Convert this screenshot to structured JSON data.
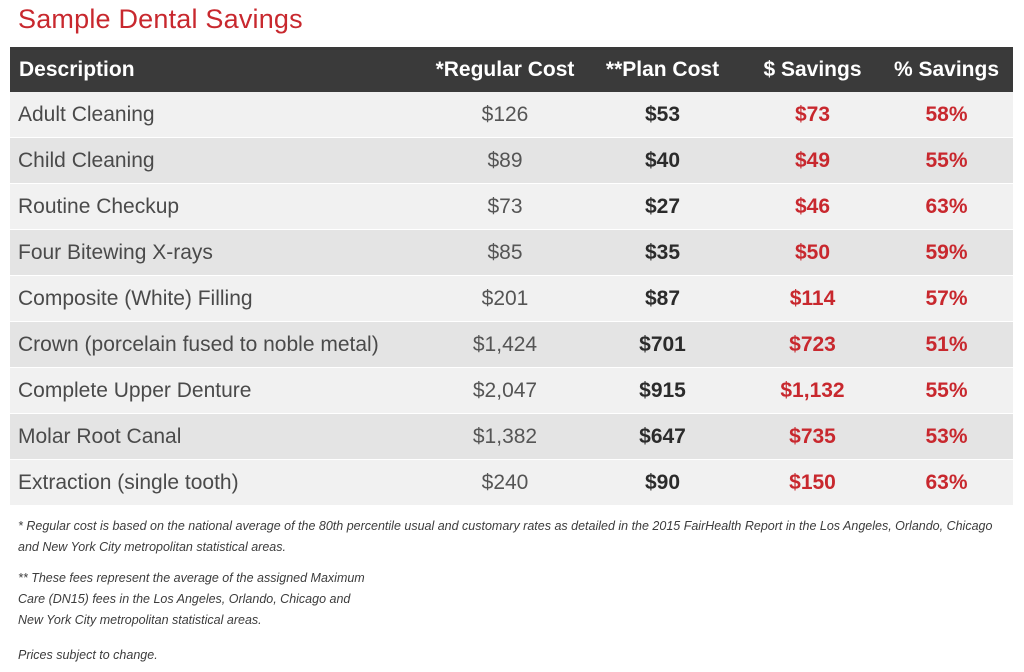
{
  "title": "Sample Dental Savings",
  "table": {
    "headers": {
      "description": "Description",
      "regular_cost": "*Regular Cost",
      "plan_cost": "**Plan Cost",
      "dollar_savings": "$ Savings",
      "percent_savings": "% Savings"
    },
    "rows": [
      {
        "description": "Adult Cleaning",
        "regular_cost": "$126",
        "plan_cost": "$53",
        "dollar_savings": "$73",
        "percent_savings": "58%"
      },
      {
        "description": "Child Cleaning",
        "regular_cost": "$89",
        "plan_cost": "$40",
        "dollar_savings": "$49",
        "percent_savings": "55%"
      },
      {
        "description": "Routine Checkup",
        "regular_cost": "$73",
        "plan_cost": "$27",
        "dollar_savings": "$46",
        "percent_savings": "63%"
      },
      {
        "description": "Four Bitewing X-rays",
        "regular_cost": "$85",
        "plan_cost": "$35",
        "dollar_savings": "$50",
        "percent_savings": "59%"
      },
      {
        "description": "Composite (White) Filling",
        "regular_cost": "$201",
        "plan_cost": "$87",
        "dollar_savings": "$114",
        "percent_savings": "57%"
      },
      {
        "description": "Crown (porcelain fused to noble metal)",
        "regular_cost": "$1,424",
        "plan_cost": "$701",
        "dollar_savings": "$723",
        "percent_savings": "51%"
      },
      {
        "description": "Complete Upper Denture",
        "regular_cost": "$2,047",
        "plan_cost": "$915",
        "dollar_savings": "$1,132",
        "percent_savings": "55%"
      },
      {
        "description": "Molar Root Canal",
        "regular_cost": "$1,382",
        "plan_cost": "$647",
        "dollar_savings": "$735",
        "percent_savings": "53%"
      },
      {
        "description": "Extraction (single tooth)",
        "regular_cost": "$240",
        "plan_cost": "$90",
        "dollar_savings": "$150",
        "percent_savings": "63%"
      }
    ]
  },
  "footnotes": {
    "regular_cost_note": "* Regular cost is based on the national average of the 80th percentile usual and customary rates as detailed in the 2015 FairHealth Report in the Los Angeles, Orlando, Chicago and New York City metropolitan statistical areas.",
    "plan_cost_note": "** These fees represent the average of the assigned Maximum Care (DN15) fees in the Los Angeles, Orlando, Chicago and New York City metropolitan statistical areas.",
    "prices_note": "Prices subject to change."
  },
  "colors": {
    "accent_red": "#c8282e",
    "header_bg": "#3a3a3a"
  }
}
